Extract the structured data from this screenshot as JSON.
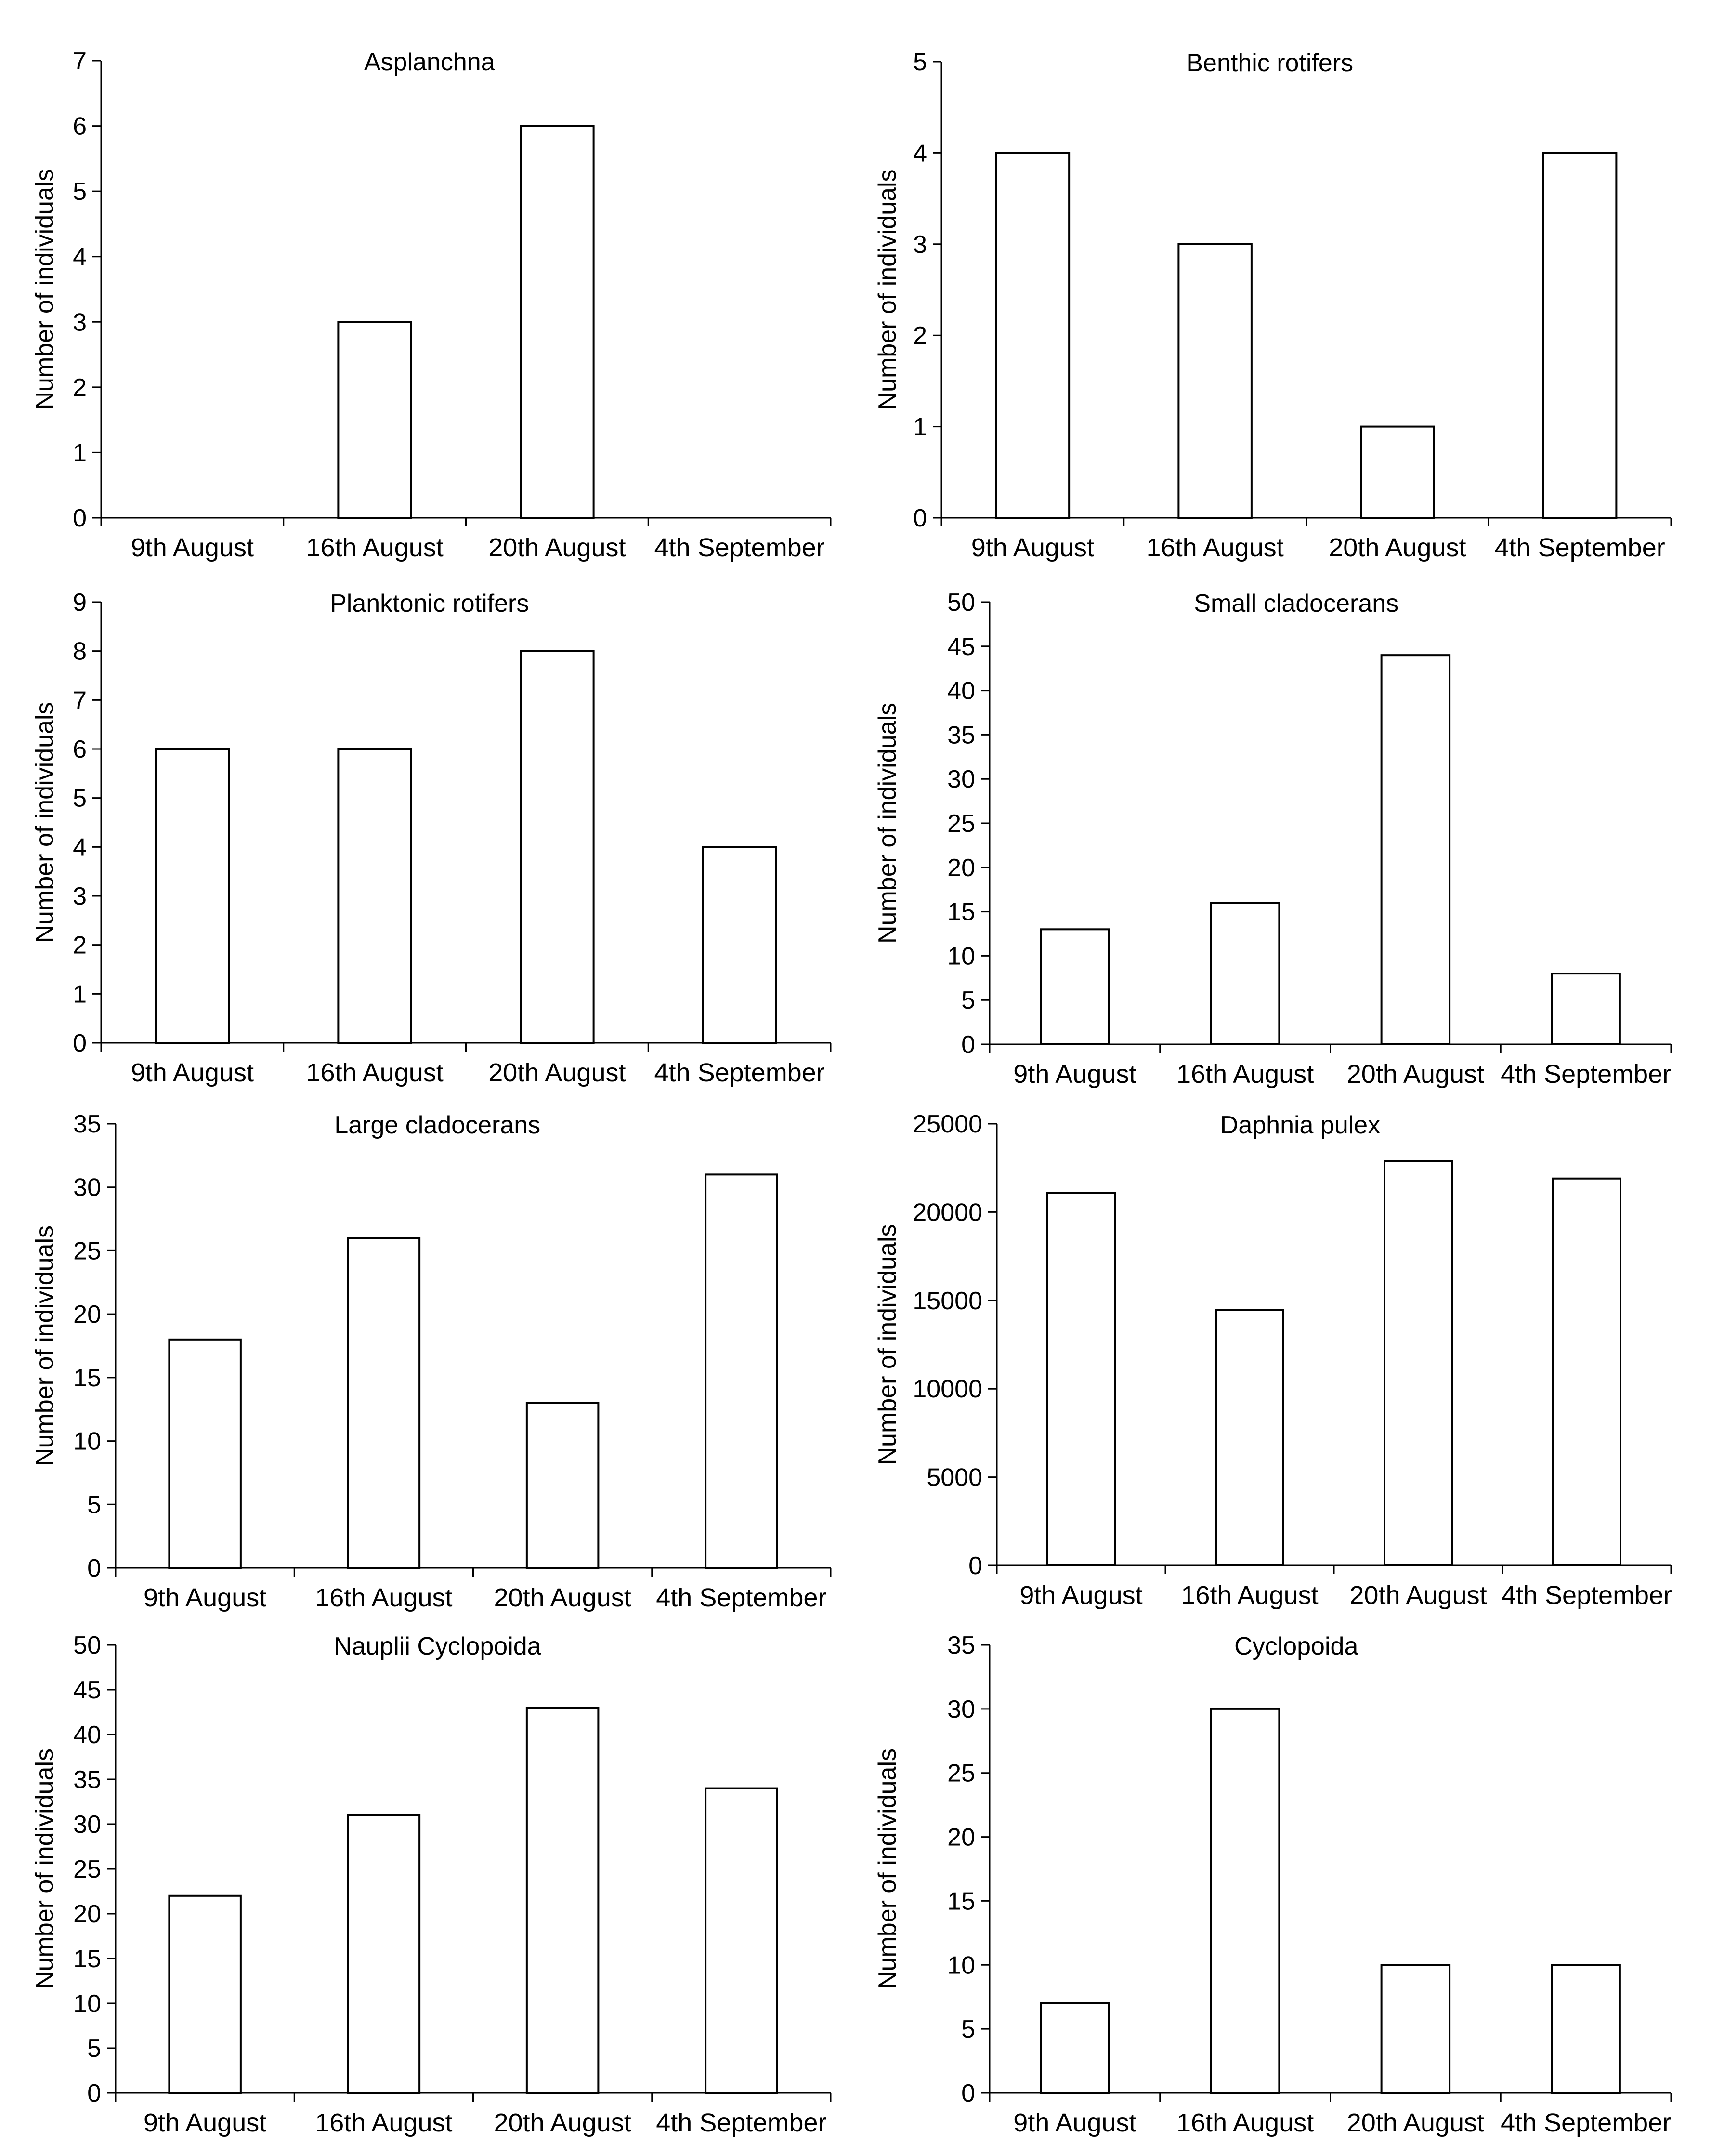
{
  "chart_data": [
    {
      "type": "bar",
      "title": "Asplanchna",
      "ylabel": "Number of individuals",
      "xlabel": "",
      "categories": [
        "9th August",
        "16th August",
        "20th August",
        "4th September"
      ],
      "values": [
        0,
        3,
        6,
        0
      ],
      "ylim": [
        0,
        7
      ],
      "yticks": [
        0,
        1,
        2,
        3,
        4,
        5,
        6,
        7
      ],
      "grid": false
    },
    {
      "type": "bar",
      "title": "Benthic rotifers",
      "ylabel": "Number of individuals",
      "xlabel": "",
      "categories": [
        "9th August",
        "16th August",
        "20th August",
        "4th September"
      ],
      "values": [
        4,
        3,
        1,
        4
      ],
      "ylim": [
        0,
        5
      ],
      "yticks": [
        0,
        1,
        2,
        3,
        4,
        5
      ],
      "grid": false
    },
    {
      "type": "bar",
      "title": "Planktonic rotifers",
      "ylabel": "Number of individuals",
      "xlabel": "",
      "categories": [
        "9th August",
        "16th August",
        "20th August",
        "4th September"
      ],
      "values": [
        6,
        6,
        8,
        4
      ],
      "ylim": [
        0,
        9
      ],
      "yticks": [
        0,
        1,
        2,
        3,
        4,
        5,
        6,
        7,
        8,
        9
      ],
      "grid": false
    },
    {
      "type": "bar",
      "title": "Small cladocerans",
      "ylabel": "Number of individuals",
      "xlabel": "",
      "categories": [
        "9th August",
        "16th August",
        "20th August",
        "4th September"
      ],
      "values": [
        13,
        16,
        44,
        8
      ],
      "ylim": [
        0,
        50
      ],
      "yticks": [
        0,
        5,
        10,
        15,
        20,
        25,
        30,
        35,
        40,
        45,
        50
      ],
      "grid": false
    },
    {
      "type": "bar",
      "title": "Large cladocerans",
      "ylabel": "Number of individuals",
      "xlabel": "",
      "categories": [
        "9th August",
        "16th August",
        "20th August",
        "4th September"
      ],
      "values": [
        18,
        26,
        13,
        31
      ],
      "ylim": [
        0,
        35
      ],
      "yticks": [
        0,
        5,
        10,
        15,
        20,
        25,
        30,
        35
      ],
      "grid": false
    },
    {
      "type": "bar",
      "title": "Daphnia pulex",
      "ylabel": "Number of individuals",
      "xlabel": "",
      "categories": [
        "9th August",
        "16th August",
        "20th August",
        "4th September"
      ],
      "values": [
        21100,
        14450,
        22900,
        21900
      ],
      "ylim": [
        0,
        25000
      ],
      "yticks": [
        0,
        5000,
        10000,
        15000,
        20000,
        25000
      ],
      "grid": false
    },
    {
      "type": "bar",
      "title": "Nauplii Cyclopoida",
      "ylabel": "Number of individuals",
      "xlabel": "",
      "categories": [
        "9th August",
        "16th August",
        "20th August",
        "4th September"
      ],
      "values": [
        22,
        31,
        43,
        34
      ],
      "ylim": [
        0,
        50
      ],
      "yticks": [
        0,
        5,
        10,
        15,
        20,
        25,
        30,
        35,
        40,
        45,
        50
      ],
      "grid": false
    },
    {
      "type": "bar",
      "title": "Cyclopoida",
      "ylabel": "Number of individuals",
      "xlabel": "",
      "categories": [
        "9th August",
        "16th August",
        "20th August",
        "4th September"
      ],
      "values": [
        7,
        30,
        10,
        10
      ],
      "ylim": [
        0,
        35
      ],
      "yticks": [
        0,
        5,
        10,
        15,
        20,
        25,
        30,
        35
      ],
      "grid": false
    }
  ]
}
